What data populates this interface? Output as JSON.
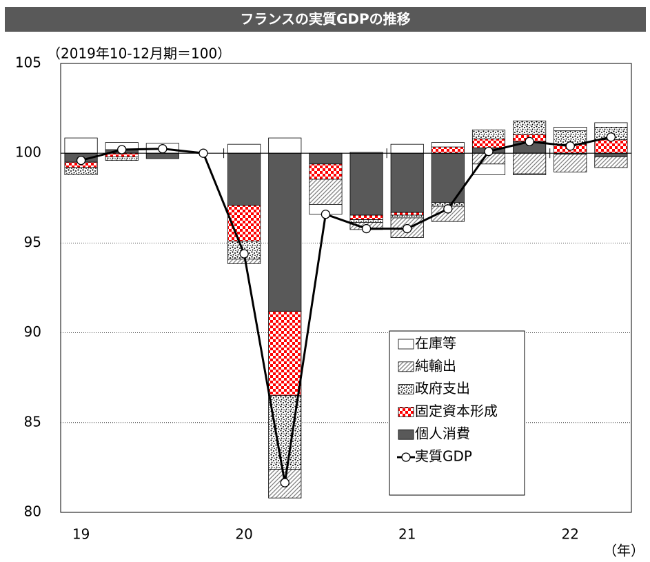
{
  "chart_data": {
    "type": "bar",
    "title": "フランスの実質GDPの推移",
    "subtitle": "（2019年10-12月期＝100）",
    "x_label": "（年）",
    "categories": [
      "19",
      null,
      null,
      null,
      "20",
      null,
      null,
      null,
      "21",
      null,
      null,
      null,
      "22",
      null
    ],
    "bar_base": 100,
    "ylim": [
      80,
      105
    ],
    "yticks": [
      80,
      85,
      90,
      95,
      100,
      105
    ],
    "grid": true,
    "series": [
      {
        "name": "個人消費",
        "color": "#595959",
        "pattern": "solid",
        "values": [
          -0.5,
          0.2,
          -0.3,
          0,
          -2.9,
          -8.8,
          -0.6,
          -3.45,
          -3.3,
          -2.75,
          0.3,
          0.65,
          -0.05,
          -0.2
        ]
      },
      {
        "name": "固定資本形成",
        "color": "#ff0000",
        "pattern": "checker",
        "values": [
          -0.3,
          -0.2,
          0,
          0,
          -2.0,
          -4.7,
          -0.85,
          -0.25,
          -0.15,
          0.35,
          0.5,
          0.4,
          0.5,
          0.75
        ]
      },
      {
        "name": "政府支出",
        "color": "#000000",
        "pattern": "dots",
        "values": [
          -0.4,
          -0.2,
          0,
          0,
          -1.0,
          -4.1,
          0,
          -0.15,
          -0.15,
          -0.2,
          0.5,
          0.75,
          0.75,
          0.7
        ]
      },
      {
        "name": "純輸出",
        "color": "#808080",
        "pattern": "hatch",
        "values": [
          0,
          0,
          0,
          0,
          -0.25,
          -1.6,
          -1.4,
          -0.4,
          -1.1,
          -0.85,
          -0.6,
          -1.15,
          -1.0,
          -0.6
        ]
      },
      {
        "name": "在庫等",
        "color": "#ffffff",
        "pattern": "none",
        "values": [
          0.85,
          0.4,
          0.55,
          0,
          0.5,
          0.85,
          -0.55,
          0.05,
          0.5,
          0.25,
          -0.6,
          -0.05,
          0.2,
          0.25
        ]
      },
      {
        "name": "実質GDP",
        "type": "line",
        "color": "#000000",
        "values": [
          99.6,
          100.2,
          100.25,
          100,
          94.4,
          81.65,
          96.6,
          95.8,
          95.8,
          96.9,
          100.1,
          100.65,
          100.4,
          100.9
        ]
      }
    ]
  }
}
